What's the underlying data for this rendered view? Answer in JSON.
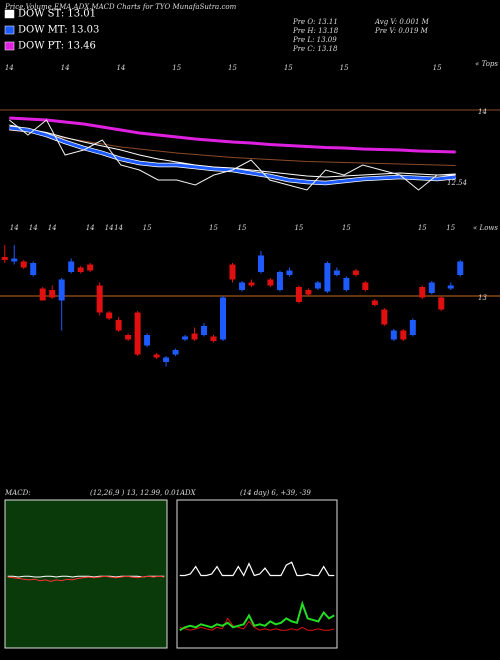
{
  "header": {
    "title": "Price,Volume,EMA,ADX,MACD Charts for TYO MunafaSutra.com",
    "legend": [
      {
        "label": "DOW ST: 13.01",
        "color": "#ffffff"
      },
      {
        "label": "DOW MT: 13.03",
        "color": "#1e5bff"
      },
      {
        "label": "DOW PT: 13.46",
        "color": "#e020e0"
      }
    ],
    "stats": [
      "Pre  O: 13.11",
      "Pre  H: 13.18",
      "Pre  L: 13.09",
      "Pre  C: 13.18"
    ],
    "volume_stats": [
      "Avg V: 0.001 M",
      "Pre  V: 0.019 M"
    ]
  },
  "chart_data": [
    {
      "type": "line",
      "corner_label": "« Tops",
      "categories": [
        "14",
        null,
        null,
        "14",
        null,
        null,
        "14",
        null,
        null,
        "15",
        null,
        null,
        "15",
        null,
        null,
        "15",
        null,
        null,
        "15",
        null,
        null,
        null,
        null,
        "15",
        null
      ],
      "ylim": [
        12.0,
        14.9
      ],
      "yticks": [
        14
      ],
      "last_price": 12.54,
      "series": [
        {
          "color": "#8b4a2a",
          "width": 1,
          "values": [
            13.6,
            13.56,
            13.5,
            13.44,
            13.38,
            13.32,
            13.26,
            13.22,
            13.18,
            13.14,
            13.11,
            13.08,
            13.05,
            13.03,
            13.01,
            12.99,
            12.97,
            12.96,
            12.95,
            12.94,
            12.93,
            12.92,
            12.91,
            12.9,
            12.89
          ]
        },
        {
          "color": "#e020e0",
          "width": 3,
          "values": [
            13.84,
            13.82,
            13.8,
            13.76,
            13.72,
            13.66,
            13.6,
            13.54,
            13.5,
            13.46,
            13.42,
            13.39,
            13.36,
            13.34,
            13.31,
            13.29,
            13.27,
            13.25,
            13.24,
            13.22,
            13.21,
            13.2,
            13.18,
            13.17,
            13.16
          ]
        },
        {
          "color": "#ffffff",
          "width": 1,
          "values": [
            13.7,
            13.62,
            13.55,
            13.45,
            13.36,
            13.28,
            13.2,
            13.1,
            13.02,
            12.96,
            12.9,
            12.86,
            12.84,
            12.8,
            12.76,
            12.72,
            12.68,
            12.66,
            12.68,
            12.7,
            12.72,
            12.74,
            12.72,
            12.7,
            12.72
          ]
        },
        {
          "color": "#1e5bff",
          "width": 3,
          "values": [
            13.64,
            13.6,
            13.5,
            13.36,
            13.24,
            13.14,
            13.02,
            12.94,
            12.9,
            12.9,
            12.86,
            12.82,
            12.8,
            12.74,
            12.68,
            12.6,
            12.56,
            12.54,
            12.58,
            12.62,
            12.64,
            12.66,
            12.64,
            12.62,
            12.66
          ]
        },
        {
          "color": "#f2f2f2",
          "width": 1,
          "values": [
            13.8,
            13.5,
            13.8,
            13.1,
            13.2,
            13.4,
            12.9,
            12.8,
            12.6,
            12.6,
            12.5,
            12.7,
            12.8,
            13.0,
            12.6,
            12.5,
            12.4,
            12.8,
            12.7,
            12.9,
            12.8,
            12.7,
            12.4,
            12.7,
            12.7
          ]
        }
      ]
    },
    {
      "type": "candlestick",
      "corner_label": "« Lows",
      "categories": [
        null,
        "14",
        null,
        "14",
        null,
        "14",
        null,
        null,
        null,
        "14",
        null,
        "14",
        "14",
        null,
        null,
        "15",
        null,
        null,
        null,
        null,
        null,
        null,
        "15",
        null,
        null,
        "15",
        null,
        null,
        null,
        null,
        null,
        "15",
        null,
        null,
        null,
        null,
        "15",
        null,
        null,
        null,
        null,
        null,
        null,
        null,
        "15",
        null,
        null,
        "15",
        null
      ],
      "ylim": [
        12.44,
        13.44
      ],
      "yticks": [
        13
      ],
      "up_color": "#1e5bff",
      "down_color": "#e01010",
      "open": [
        13.26,
        13.23,
        13.23,
        13.14,
        13.05,
        13.04,
        12.97,
        13.16,
        13.19,
        13.21,
        13.07,
        12.89,
        12.84,
        12.74,
        12.89,
        12.67,
        12.61,
        12.56,
        12.61,
        12.71,
        12.75,
        12.74,
        12.73,
        12.71,
        13.21,
        13.04,
        13.09,
        13.16,
        13.11,
        13.04,
        13.14,
        13.06,
        13.04,
        13.05,
        13.03,
        13.14,
        13.04,
        13.17,
        13.09,
        12.97,
        12.91,
        12.71,
        12.77,
        12.74,
        13.06,
        13.02,
        12.99,
        13.05,
        13.14
      ],
      "high": [
        13.34,
        13.34,
        13.24,
        13.23,
        13.06,
        13.07,
        13.12,
        13.25,
        13.2,
        13.22,
        13.09,
        12.9,
        12.86,
        12.75,
        12.9,
        12.75,
        12.62,
        12.6,
        12.65,
        12.74,
        12.79,
        12.82,
        12.74,
        13.0,
        13.22,
        13.1,
        13.11,
        13.3,
        13.12,
        13.17,
        13.19,
        13.07,
        13.05,
        13.1,
        13.23,
        13.19,
        13.13,
        13.18,
        13.1,
        12.98,
        12.92,
        12.78,
        12.78,
        12.85,
        13.07,
        13.1,
        13.0,
        13.09,
        13.24
      ],
      "low": [
        13.22,
        13.21,
        13.18,
        13.13,
        12.97,
        12.98,
        12.77,
        13.15,
        13.15,
        13.16,
        12.87,
        12.84,
        12.76,
        12.7,
        12.6,
        12.66,
        12.58,
        12.53,
        12.6,
        12.7,
        12.7,
        12.73,
        12.69,
        12.7,
        13.09,
        13.03,
        13.06,
        13.15,
        13.06,
        13.03,
        13.13,
        12.95,
        13.0,
        13.04,
        13.02,
        13.13,
        13.03,
        13.13,
        13.03,
        12.93,
        12.8,
        12.7,
        12.7,
        12.73,
        12.98,
        13.01,
        12.9,
        13.04,
        13.13
      ],
      "close": [
        13.24,
        13.25,
        13.19,
        13.22,
        12.97,
        12.99,
        13.11,
        13.23,
        13.16,
        13.17,
        12.89,
        12.85,
        12.77,
        12.71,
        12.61,
        12.74,
        12.59,
        12.59,
        12.64,
        12.73,
        12.71,
        12.8,
        12.7,
        12.99,
        13.11,
        13.09,
        13.07,
        13.27,
        13.07,
        13.16,
        13.17,
        12.96,
        13.01,
        13.09,
        13.22,
        13.17,
        13.12,
        13.14,
        13.04,
        12.94,
        12.81,
        12.77,
        12.71,
        12.84,
        12.99,
        13.09,
        12.91,
        13.07,
        13.23
      ]
    },
    {
      "type": "line",
      "title": "MACD:",
      "subtitle": "(12,26,9 ) 13, 12.99, 0.01",
      "background": "#0a3a0a",
      "ylim": [
        -1,
        1
      ],
      "series": [
        {
          "color": "#ffffff",
          "width": 1,
          "values": [
            -0.03,
            -0.03,
            -0.04,
            -0.03,
            -0.03,
            -0.04,
            -0.04,
            -0.03,
            -0.03,
            -0.04,
            -0.03,
            -0.03,
            -0.04,
            -0.03,
            -0.03,
            -0.03,
            -0.04,
            -0.03,
            -0.03,
            -0.03,
            -0.04,
            -0.03,
            -0.03,
            -0.03,
            -0.03,
            -0.04,
            -0.03,
            -0.03,
            -0.03,
            -0.03
          ]
        },
        {
          "color": "#ff3030",
          "width": 1,
          "values": [
            -0.04,
            -0.05,
            -0.06,
            -0.07,
            -0.08,
            -0.07,
            -0.09,
            -0.08,
            -0.1,
            -0.08,
            -0.09,
            -0.07,
            -0.08,
            -0.06,
            -0.05,
            -0.04,
            -0.05,
            -0.04,
            -0.03,
            -0.04,
            -0.05,
            -0.04,
            -0.03,
            -0.04,
            -0.05,
            -0.04,
            -0.03,
            -0.04,
            -0.03,
            -0.04
          ]
        }
      ]
    },
    {
      "type": "line",
      "title": "ADX",
      "subtitle": "(14  day) 6, +39, -39",
      "background": "#000000",
      "ylim": [
        0,
        100
      ],
      "series": [
        {
          "color": "#ffffff",
          "width": 1.2,
          "values": [
            49,
            49,
            50,
            55,
            49,
            49,
            50,
            55,
            49,
            49,
            49,
            55,
            49,
            57,
            49,
            50,
            54,
            49,
            49,
            49,
            56,
            58,
            49,
            49,
            50,
            49,
            49,
            55,
            49,
            49
          ]
        },
        {
          "color": "#e01010",
          "width": 1,
          "values": [
            14,
            13,
            12,
            13,
            14,
            13,
            12,
            14,
            13,
            20,
            15,
            14,
            13,
            18,
            14,
            12,
            13,
            12,
            13,
            12,
            12,
            13,
            12,
            14,
            12,
            12,
            13,
            12,
            12,
            13
          ]
        },
        {
          "color": "#22dd22",
          "width": 2,
          "values": [
            12,
            14,
            15,
            14,
            16,
            15,
            14,
            16,
            15,
            17,
            14,
            15,
            16,
            22,
            15,
            16,
            15,
            18,
            16,
            17,
            20,
            18,
            17,
            30,
            20,
            19,
            18,
            24,
            20,
            22
          ]
        }
      ]
    }
  ]
}
